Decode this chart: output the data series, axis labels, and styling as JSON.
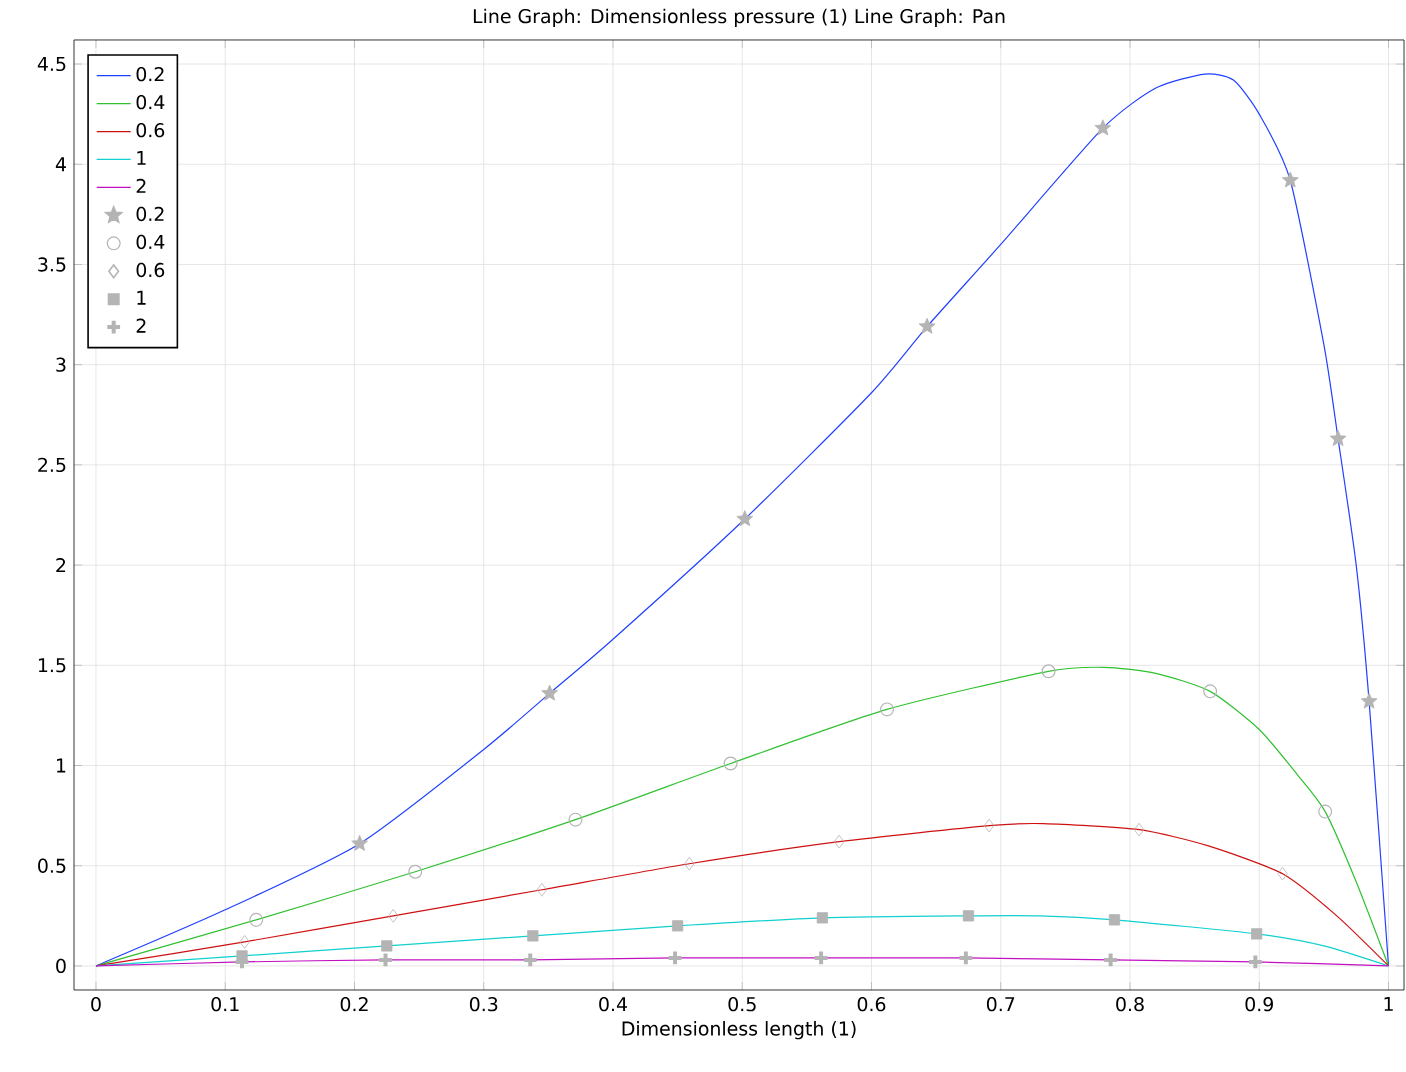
{
  "chart_data": {
    "type": "line",
    "title": "Line Graph: Dimensionless pressure (1)  Line Graph: Pan",
    "xlabel": "Dimensionless length (1)",
    "xlim": [
      -0.017,
      1.012
    ],
    "ylim": [
      -0.12,
      4.62
    ],
    "xticks": [
      0,
      0.1,
      0.2,
      0.3,
      0.4,
      0.5,
      0.6,
      0.7,
      0.8,
      0.9,
      1
    ],
    "yticks": [
      0,
      0.5,
      1,
      1.5,
      2,
      2.5,
      3,
      3.5,
      4,
      4.5
    ],
    "grid": true,
    "legend": "top left",
    "line_style": "solid",
    "series": [
      {
        "name": "0.2",
        "color": "#2040ff",
        "x": [
          0,
          0.1,
          0.204,
          0.3,
          0.351,
          0.4,
          0.502,
          0.6,
          0.643,
          0.7,
          0.779,
          0.82,
          0.858,
          0.88,
          0.9,
          0.924,
          0.95,
          0.961,
          0.975,
          0.985,
          1
        ],
        "values": [
          0,
          0.28,
          0.61,
          1.08,
          1.36,
          1.63,
          2.23,
          2.86,
          3.19,
          3.6,
          4.18,
          4.38,
          4.45,
          4.42,
          4.25,
          3.92,
          3.1,
          2.63,
          2.0,
          1.32,
          0
        ]
      },
      {
        "name": "0.4",
        "color": "#30c030",
        "x": [
          0,
          0.124,
          0.247,
          0.371,
          0.491,
          0.612,
          0.737,
          0.78,
          0.82,
          0.862,
          0.9,
          0.93,
          0.951,
          0.975,
          1
        ],
        "values": [
          0,
          0.23,
          0.47,
          0.73,
          1.01,
          1.28,
          1.47,
          1.49,
          1.46,
          1.37,
          1.18,
          0.95,
          0.77,
          0.42,
          0
        ]
      },
      {
        "name": "0.6",
        "color": "#d01010",
        "x": [
          0,
          0.115,
          0.23,
          0.345,
          0.459,
          0.575,
          0.691,
          0.733,
          0.807,
          0.86,
          0.918,
          0.96,
          1
        ],
        "values": [
          0,
          0.12,
          0.25,
          0.38,
          0.51,
          0.62,
          0.7,
          0.71,
          0.68,
          0.6,
          0.46,
          0.25,
          0
        ]
      },
      {
        "name": "1",
        "color": "#10d0d0",
        "x": [
          0,
          0.113,
          0.225,
          0.338,
          0.45,
          0.562,
          0.675,
          0.73,
          0.788,
          0.898,
          0.95,
          1
        ],
        "values": [
          0,
          0.05,
          0.1,
          0.15,
          0.2,
          0.24,
          0.25,
          0.25,
          0.23,
          0.16,
          0.1,
          0
        ]
      },
      {
        "name": "2",
        "color": "#c010c0",
        "x": [
          0,
          0.113,
          0.224,
          0.336,
          0.448,
          0.561,
          0.673,
          0.785,
          0.897,
          1
        ],
        "values": [
          0,
          0.02,
          0.03,
          0.03,
          0.04,
          0.04,
          0.04,
          0.03,
          0.02,
          0
        ]
      },
      {
        "name": "0.2",
        "type": "scatter",
        "marker": "star",
        "color": "#b4b4b4",
        "x": [
          0.204,
          0.351,
          0.502,
          0.643,
          0.779,
          0.924,
          0.961,
          0.985
        ],
        "values": [
          0.61,
          1.36,
          2.23,
          3.19,
          4.18,
          3.92,
          2.63,
          1.32
        ]
      },
      {
        "name": "0.4",
        "type": "scatter",
        "marker": "circle",
        "color": "#b4b4b4",
        "x": [
          0.124,
          0.247,
          0.371,
          0.491,
          0.612,
          0.737,
          0.862,
          0.951
        ],
        "values": [
          0.23,
          0.47,
          0.73,
          1.01,
          1.28,
          1.47,
          1.37,
          0.77
        ]
      },
      {
        "name": "0.6",
        "type": "scatter",
        "marker": "diamond",
        "color": "#b4b4b4",
        "x": [
          0.115,
          0.23,
          0.345,
          0.459,
          0.575,
          0.691,
          0.807,
          0.918
        ],
        "values": [
          0.12,
          0.25,
          0.38,
          0.51,
          0.62,
          0.7,
          0.68,
          0.46
        ]
      },
      {
        "name": "1",
        "type": "scatter",
        "marker": "square",
        "color": "#b4b4b4",
        "x": [
          0.113,
          0.225,
          0.338,
          0.45,
          0.562,
          0.675,
          0.788,
          0.898
        ],
        "values": [
          0.05,
          0.1,
          0.15,
          0.2,
          0.24,
          0.25,
          0.23,
          0.16
        ]
      },
      {
        "name": "2",
        "type": "scatter",
        "marker": "cross",
        "color": "#b4b4b4",
        "x": [
          0.113,
          0.224,
          0.336,
          0.448,
          0.561,
          0.673,
          0.785,
          0.897
        ],
        "values": [
          0.02,
          0.03,
          0.03,
          0.04,
          0.04,
          0.04,
          0.03,
          0.02
        ]
      }
    ]
  }
}
